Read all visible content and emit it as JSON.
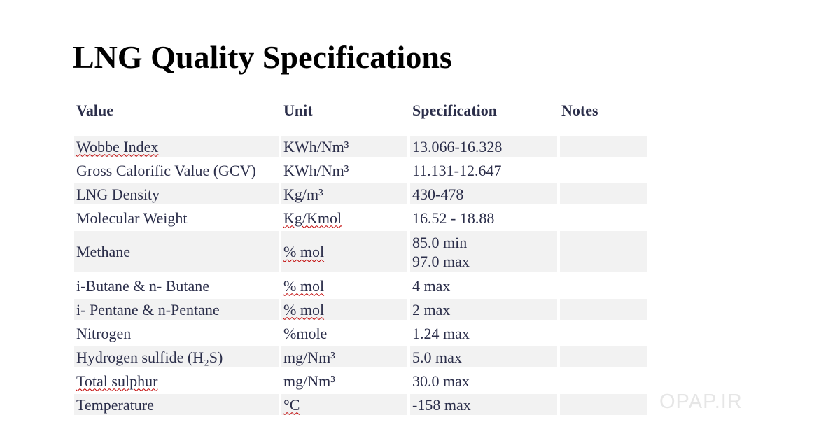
{
  "title": "LNG Quality Specifications",
  "headers": {
    "value": "Value",
    "unit": "Unit",
    "specification": "Specification",
    "notes": "Notes"
  },
  "rows": [
    {
      "value": "Wobbe Index",
      "unit": "KWh/Nm³",
      "spec": [
        "13.066-16.328"
      ],
      "notes": ""
    },
    {
      "value": "Gross Calorific Value (GCV)",
      "unit": "KWh/Nm³",
      "spec": [
        "11.131-12.647"
      ],
      "notes": ""
    },
    {
      "value": "LNG Density",
      "unit": "Kg/m³",
      "spec": [
        "430-478"
      ],
      "notes": ""
    },
    {
      "value": "Molecular Weight",
      "unit": "Kg/Kmol",
      "spec": [
        "16.52 - 18.88"
      ],
      "notes": ""
    },
    {
      "value": "Methane",
      "unit": "% mol",
      "spec": [
        "85.0 min",
        "97.0 max"
      ],
      "notes": ""
    },
    {
      "value": "i-Butane & n- Butane",
      "unit": "% mol",
      "spec": [
        "4 max"
      ],
      "notes": ""
    },
    {
      "value": "i- Pentane & n-Pentane",
      "unit": "% mol",
      "spec": [
        "2 max"
      ],
      "notes": ""
    },
    {
      "value": "Nitrogen",
      "unit": "%mole",
      "spec": [
        "1.24 max"
      ],
      "notes": ""
    },
    {
      "value": "Hydrogen sulfide (H₂S)",
      "unit": "mg/Nm³",
      "spec": [
        "5.0 max"
      ],
      "notes": ""
    },
    {
      "value": "Total sulphur",
      "unit": "mg/Nm³",
      "spec": [
        "30.0 max"
      ],
      "notes": ""
    },
    {
      "value": "Temperature",
      "unit": "°C",
      "spec": [
        "-158 max"
      ],
      "notes": ""
    }
  ],
  "watermark": "OPAP.IR",
  "colors": {
    "text": "#2b2e4a",
    "row_shade": "#f2f2f2",
    "spellcheck": "#c00000",
    "watermark": "#e6e6e6"
  }
}
